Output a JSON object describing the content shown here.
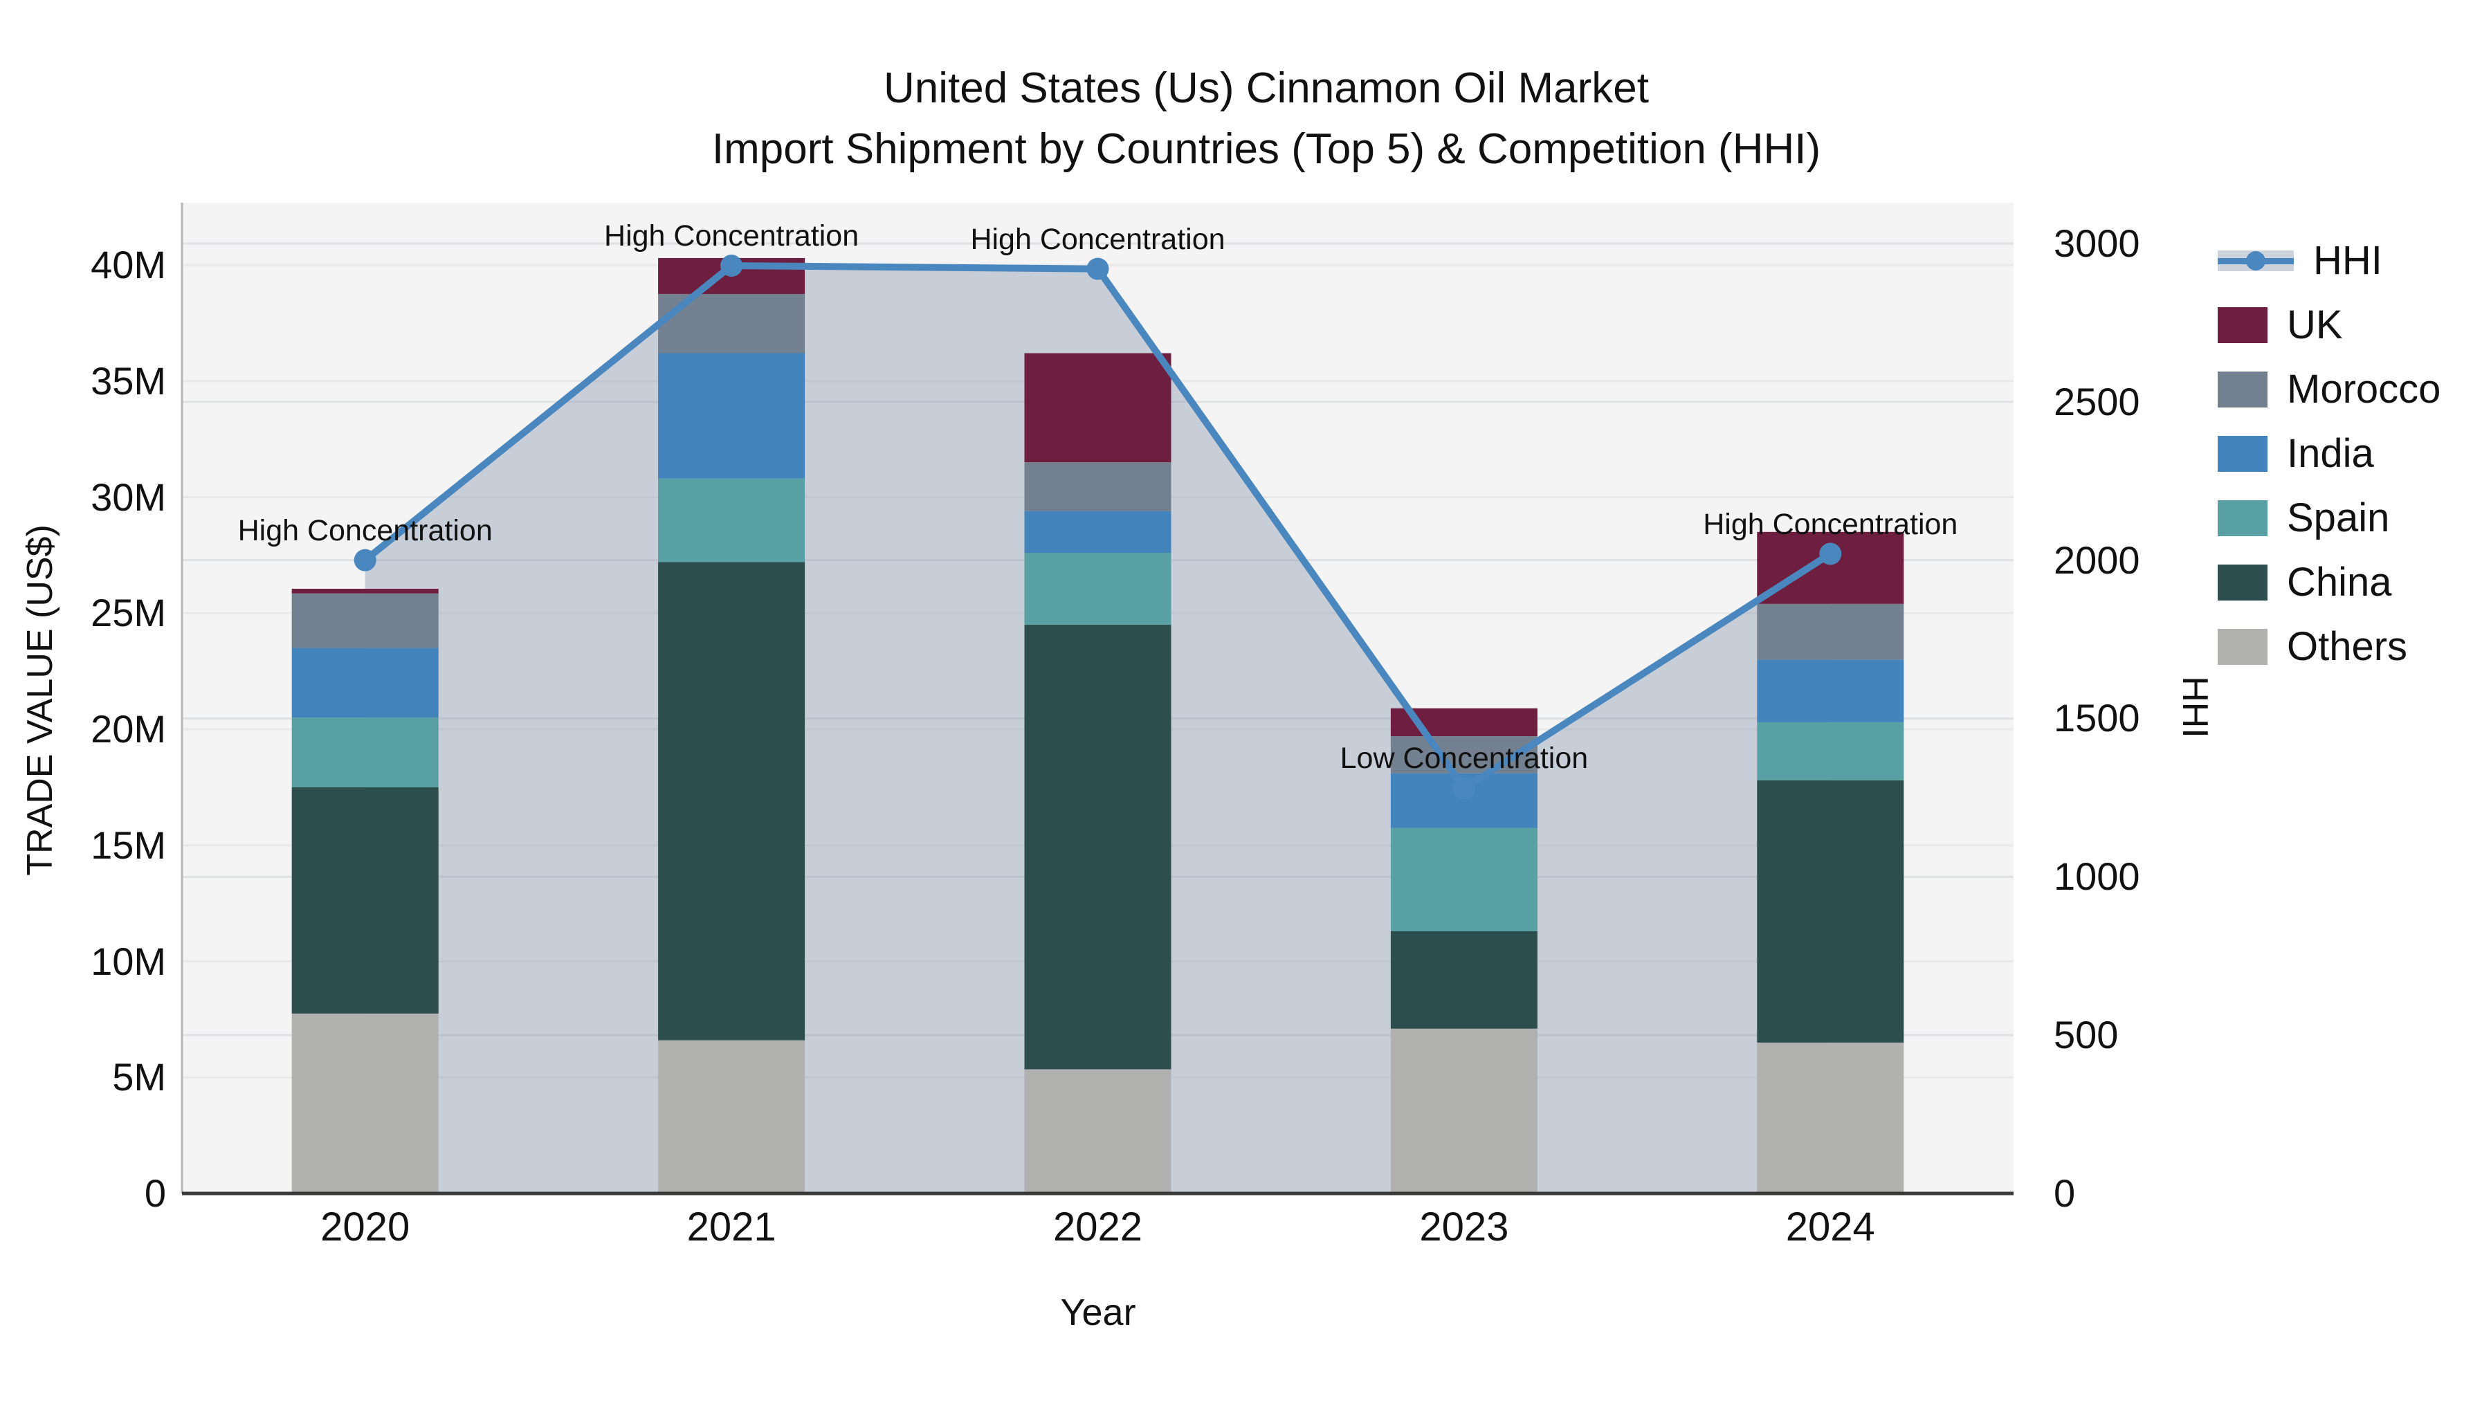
{
  "title": {
    "line1": "United States (Us) Cinnamon Oil Market",
    "line2": "Import Shipment by Countries (Top 5) & Competition (HHI)"
  },
  "axes": {
    "x_label": "Year",
    "y_left_label": "TRADE VALUE (US$)",
    "y_right_label": "HHI",
    "x_ticks": [
      "2020",
      "2021",
      "2022",
      "2023",
      "2024"
    ],
    "y_left_ticks": [
      "0",
      "5M",
      "10M",
      "15M",
      "20M",
      "25M",
      "30M",
      "35M",
      "40M"
    ],
    "y_right_ticks": [
      "0",
      "500",
      "1000",
      "1500",
      "2000",
      "2500",
      "3000"
    ]
  },
  "legend": {
    "items": [
      {
        "label": "HHI",
        "type": "line",
        "color": "#4b87bf"
      },
      {
        "label": "UK",
        "type": "box",
        "color": "#6e1e3e"
      },
      {
        "label": "Morocco",
        "type": "box",
        "color": "#73808f"
      },
      {
        "label": "India",
        "type": "box",
        "color": "#4484bc"
      },
      {
        "label": "Spain",
        "type": "box",
        "color": "#58a0a3"
      },
      {
        "label": "China",
        "type": "box",
        "color": "#2d4e4e"
      },
      {
        "label": "Others",
        "type": "box",
        "color": "#b1b1af"
      }
    ]
  },
  "chart_data": {
    "type": "combo stacked-bar + line",
    "title": "United States (Us) Cinnamon Oil Market Import Shipment by Countries (Top 5) & Competition (HHI)",
    "xlabel": "Year",
    "ylabel_left": "TRADE VALUE (US$)",
    "ylabel_right": "HHI",
    "x": [
      2020,
      2021,
      2022,
      2023,
      2024
    ],
    "bar_value_unit": "million US$",
    "series": [
      {
        "name": "Others",
        "color": "#b1b1af",
        "values": [
          7.75,
          6.6,
          5.35,
          7.1,
          6.5
        ]
      },
      {
        "name": "China",
        "color": "#2d4e4e",
        "values": [
          9.75,
          20.6,
          19.15,
          4.2,
          11.3
        ]
      },
      {
        "name": "Spain",
        "color": "#58a0a3",
        "values": [
          3.0,
          3.6,
          3.1,
          4.45,
          2.5
        ]
      },
      {
        "name": "India",
        "color": "#4484bc",
        "values": [
          3.0,
          5.4,
          1.8,
          2.35,
          2.7
        ]
      },
      {
        "name": "Morocco",
        "color": "#73808f",
        "values": [
          2.35,
          2.55,
          2.1,
          1.6,
          2.4
        ]
      },
      {
        "name": "UK",
        "color": "#6e1e3e",
        "values": [
          0.2,
          1.55,
          4.7,
          1.2,
          3.1
        ]
      }
    ],
    "bar_totals": [
      26.05,
      40.3,
      36.2,
      20.9,
      28.5
    ],
    "line": {
      "name": "HHI",
      "color": "#4b87bf",
      "area_fill": "rgba(130,145,170,0.38)",
      "values": [
        2000,
        2930,
        2920,
        1280,
        2020
      ],
      "annotations": [
        "High Concentration",
        "High Concentration",
        "High Concentration",
        "Low Concentration",
        "High Concentration"
      ]
    },
    "y_left": {
      "min": 0,
      "ticks": [
        0,
        5,
        10,
        15,
        20,
        25,
        30,
        35,
        40
      ],
      "unit": "M",
      "grid": true
    },
    "y_right": {
      "min": 0,
      "ticks": [
        0,
        500,
        1000,
        1500,
        2000,
        2500,
        3000
      ],
      "grid": true
    },
    "legend_position": "right"
  },
  "colors": {
    "plot_background": "#f4f4f4",
    "figure_background": "#ffffff",
    "grid_left": "#e9e9e9",
    "grid_right": "#dfe1e4",
    "bottom_spine": "#3a3a3a",
    "left_spine": "#b5b5b5"
  }
}
